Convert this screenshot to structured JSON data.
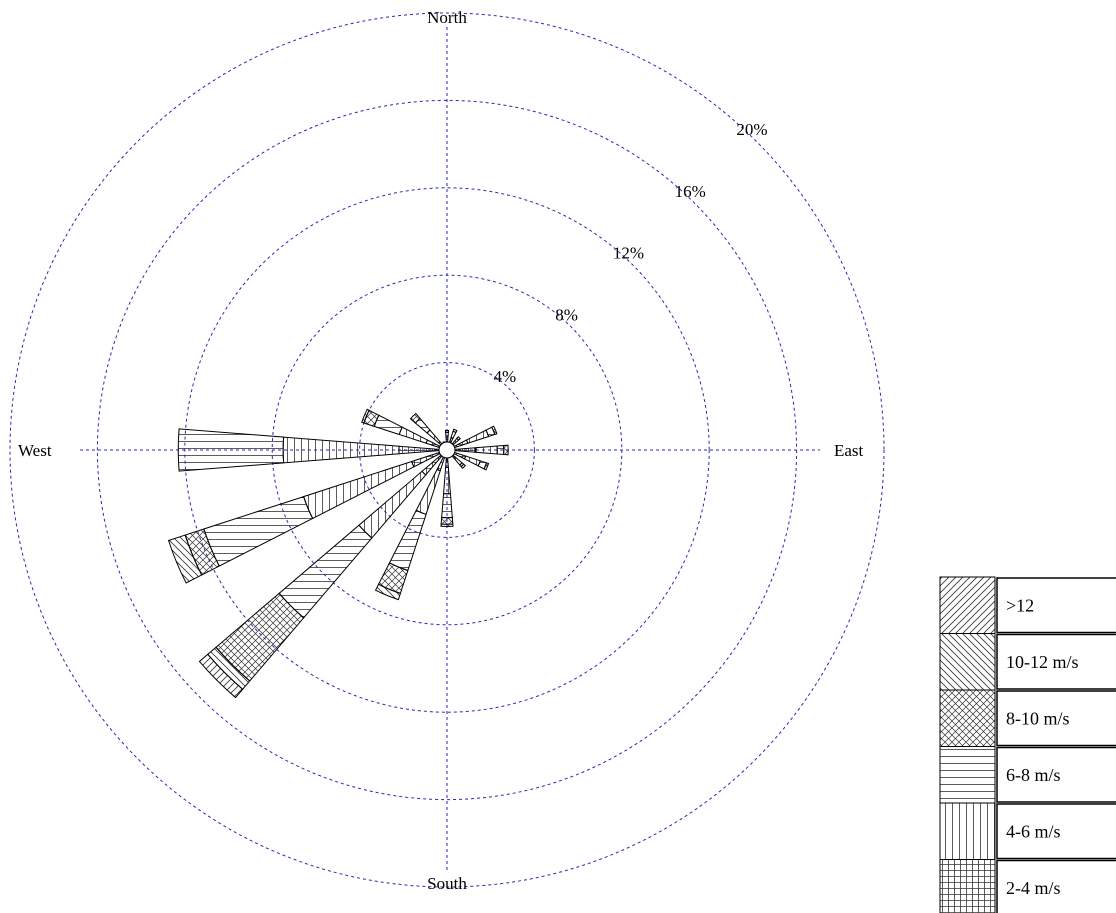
{
  "chart_data": {
    "type": "wind-rose",
    "directions_deg": [
      0,
      22.5,
      45,
      67.5,
      90,
      112.5,
      135,
      157.5,
      180,
      202.5,
      225,
      247.5,
      270,
      292.5,
      315,
      337.5
    ],
    "compass_labels": {
      "north": "North",
      "east": "East",
      "south": "South",
      "west": "West"
    },
    "radial_ticks": [
      4,
      8,
      12,
      16,
      20
    ],
    "radial_tick_labels": [
      "4%",
      "8%",
      "12%",
      "16%",
      "20%"
    ],
    "rmax": 20,
    "grid": true,
    "legend_position": "bottom-right",
    "legend_entries": [
      "2-4 m/s",
      "4-6 m/s",
      "6-8 m/s",
      "8-10 m/s",
      "10-12 m/s",
      ">12"
    ],
    "series": [
      {
        "name": "2-4 m/s",
        "values": [
          0.5,
          0.6,
          0.4,
          1.0,
          1.3,
          0.9,
          0.5,
          0.2,
          0.8,
          1.0,
          1.5,
          1.7,
          2.2,
          1.0,
          0.5,
          0.3
        ]
      },
      {
        "name": "4-6 m/s",
        "values": [
          0.3,
          0.3,
          0.3,
          1.0,
          1.0,
          0.7,
          0.4,
          0.1,
          1.2,
          2.1,
          3.8,
          5.2,
          5.3,
          1.3,
          0.7,
          0.1
        ]
      },
      {
        "name": "6-8 m/s",
        "values": [
          0.1,
          0.1,
          0.1,
          0.3,
          0.3,
          0.3,
          0.1,
          0.0,
          1.1,
          2.7,
          4.8,
          4.8,
          4.8,
          1.2,
          0.7,
          0.0
        ]
      },
      {
        "name": "8-10 m/s",
        "values": [
          0.0,
          0.0,
          0.0,
          0.1,
          0.2,
          0.1,
          0.1,
          0.0,
          0.3,
          1.1,
          3.8,
          0.9,
          0.0,
          0.5,
          0.3,
          0.0
        ]
      },
      {
        "name": "10-12 m/s",
        "values": [
          0.0,
          0.0,
          0.0,
          0.0,
          0.0,
          0.0,
          0.0,
          0.0,
          0.1,
          0.3,
          0.5,
          0.8,
          0.0,
          0.1,
          0.0,
          0.0
        ]
      },
      {
        "name": ">12",
        "values": [
          0.0,
          0.0,
          0.0,
          0.0,
          0.0,
          0.0,
          0.0,
          0.0,
          0.0,
          0.0,
          0.5,
          0.0,
          0.0,
          0.0,
          0.0,
          0.0
        ]
      }
    ]
  },
  "colors": {
    "grid": "#2a2ab5",
    "wedge_stroke": "#000000",
    "pattern": "#333333"
  }
}
